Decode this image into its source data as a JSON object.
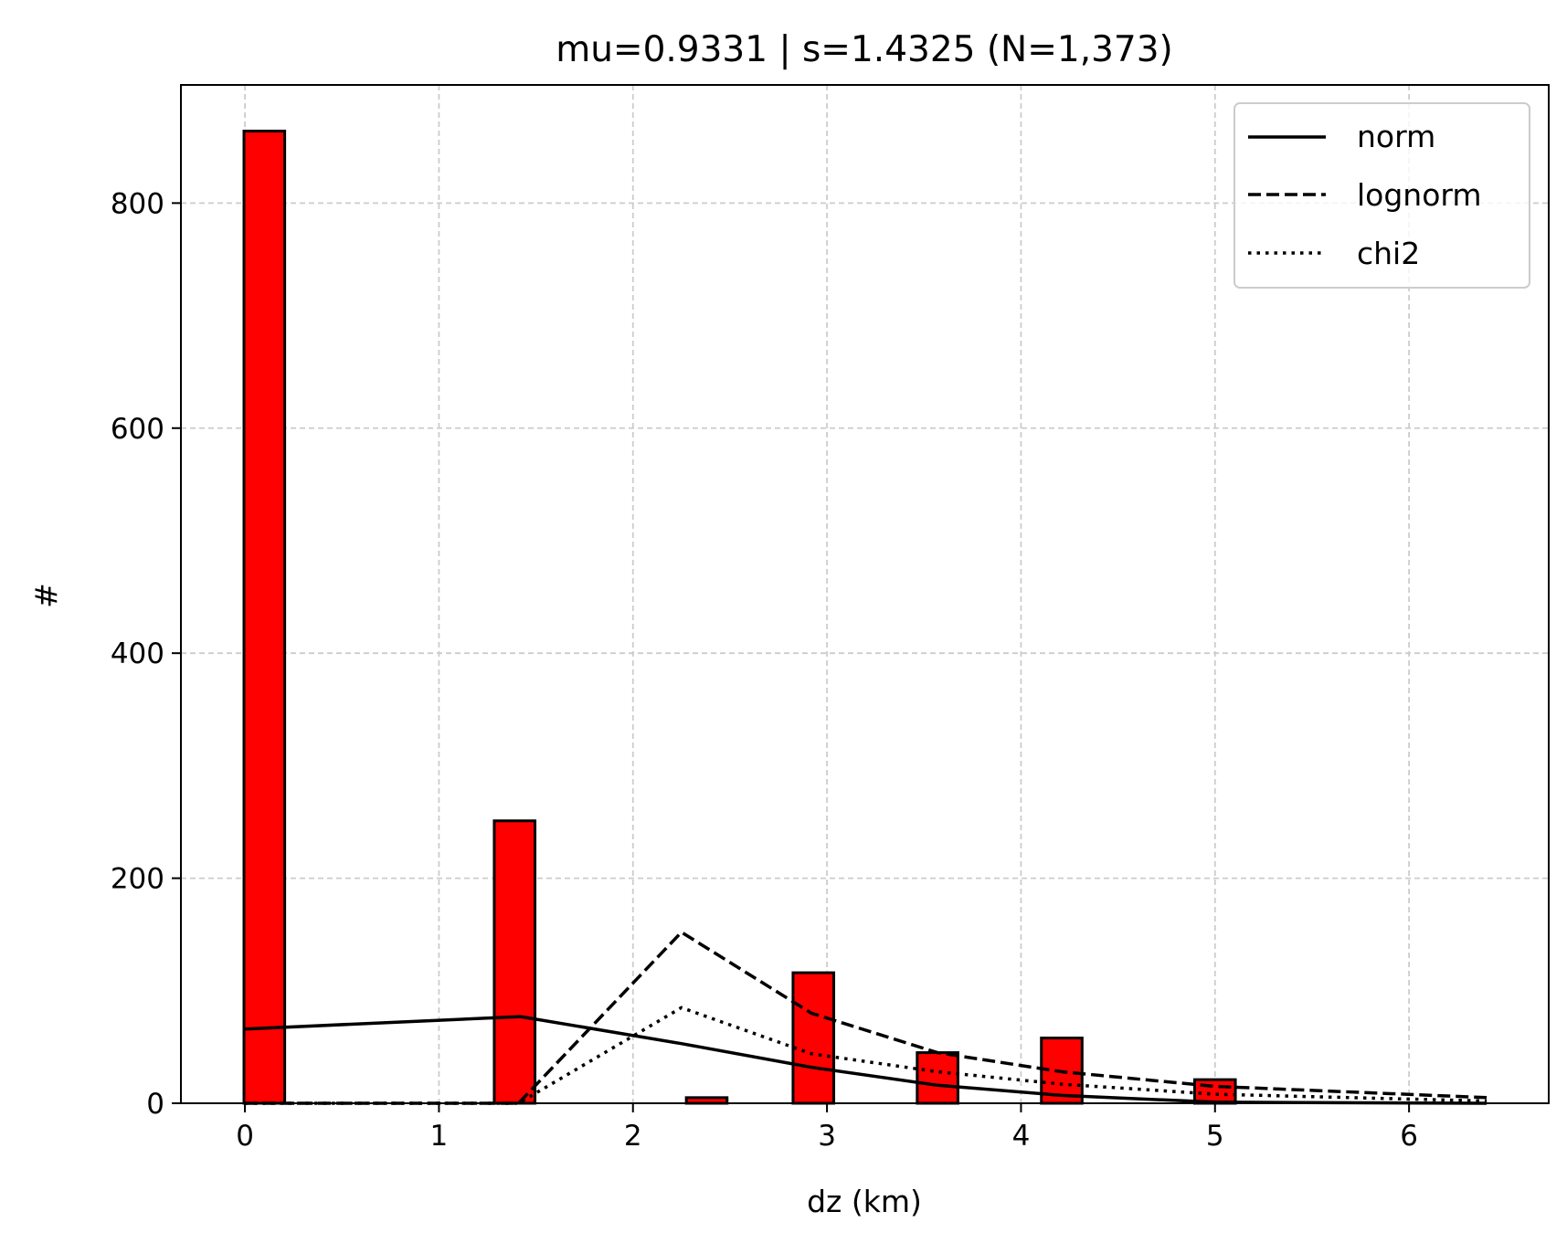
{
  "chart_data": {
    "type": "bar",
    "title": "mu=0.9331 | s=1.4325 (N=1,373)",
    "xlabel": "dz (km)",
    "ylabel": "#",
    "xlim": [
      -0.33,
      6.72
    ],
    "ylim": [
      0,
      905
    ],
    "xticks": [
      0,
      1,
      2,
      3,
      4,
      5,
      6
    ],
    "yticks": [
      0,
      200,
      400,
      600,
      800
    ],
    "grid": true,
    "legend_position": "top-right",
    "bar_color": "#ff0000",
    "bars": [
      {
        "x": 0.1,
        "value": 864
      },
      {
        "x": 1.39,
        "value": 251
      },
      {
        "x": 2.38,
        "value": 5
      },
      {
        "x": 2.93,
        "value": 116
      },
      {
        "x": 3.57,
        "value": 45
      },
      {
        "x": 4.21,
        "value": 58
      },
      {
        "x": 5.0,
        "value": 21
      }
    ],
    "bar_width": 0.21,
    "series": [
      {
        "name": "norm",
        "style": "solid",
        "x": [
          0,
          1.42,
          2.25,
          2.92,
          3.57,
          4.21,
          5.0,
          6.4
        ],
        "y": [
          66,
          77,
          53,
          32,
          16,
          7,
          1,
          0
        ]
      },
      {
        "name": "lognorm",
        "style": "dashed",
        "x": [
          0,
          1.41,
          2.25,
          2.92,
          3.57,
          4.21,
          5.0,
          6.4
        ],
        "y": [
          0,
          0,
          152,
          80,
          45,
          28,
          15,
          5
        ]
      },
      {
        "name": "chi2",
        "style": "dotted",
        "x": [
          0,
          1.41,
          2.25,
          2.92,
          3.57,
          4.21,
          5.0,
          6.4
        ],
        "y": [
          0,
          0,
          85,
          44,
          28,
          17,
          8,
          2
        ]
      }
    ]
  }
}
